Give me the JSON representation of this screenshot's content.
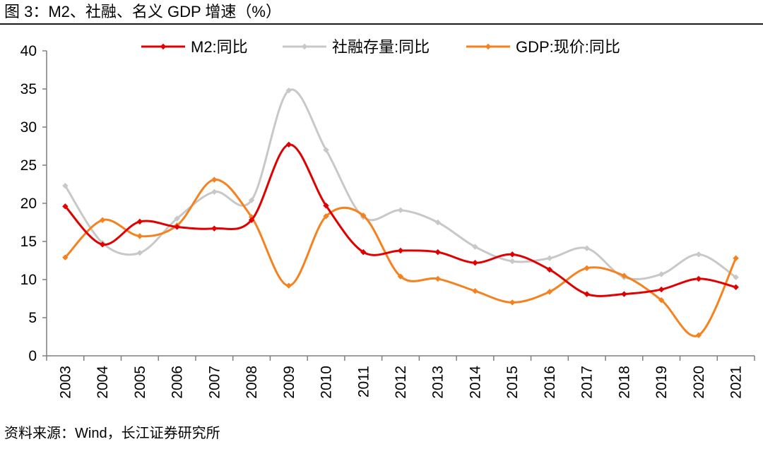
{
  "figure": {
    "title": "图 3：M2、社融、名义 GDP 增速（%）",
    "source": "资料来源：Wind，长江证券研究所"
  },
  "chart_data": {
    "type": "line",
    "title": "图 3：M2、社融、名义 GDP 增速（%）",
    "xlabel": "",
    "ylabel": "",
    "ylim": [
      0,
      40
    ],
    "yticks": [
      "0",
      "5",
      "10",
      "15",
      "20",
      "25",
      "30",
      "35",
      "40"
    ],
    "categories": [
      "2003",
      "2004",
      "2005",
      "2006",
      "2007",
      "2008",
      "2009",
      "2010",
      "2011",
      "2012",
      "2013",
      "2014",
      "2015",
      "2016",
      "2017",
      "2018",
      "2019",
      "2020",
      "2021"
    ],
    "legend_position": "top",
    "grid": false,
    "series": [
      {
        "name": "M2:同比",
        "color": "#e00000",
        "values": [
          19.6,
          14.6,
          17.6,
          16.9,
          16.7,
          17.8,
          27.7,
          19.7,
          13.6,
          13.8,
          13.6,
          12.2,
          13.3,
          11.3,
          8.1,
          8.1,
          8.7,
          10.1,
          9.0
        ]
      },
      {
        "name": "社融存量:同比",
        "color": "#c8c8c8",
        "values": [
          22.3,
          14.8,
          13.5,
          18.0,
          21.5,
          20.4,
          34.8,
          27.0,
          18.2,
          19.1,
          17.5,
          14.3,
          12.4,
          12.8,
          14.1,
          10.3,
          10.7,
          13.3,
          10.3
        ]
      },
      {
        "name": "GDP:现价:同比",
        "color": "#f5821f",
        "values": [
          12.9,
          17.8,
          15.7,
          17.1,
          23.1,
          18.2,
          9.2,
          18.3,
          18.4,
          10.4,
          10.1,
          8.5,
          7.0,
          8.4,
          11.5,
          10.5,
          7.3,
          2.7,
          12.8
        ]
      }
    ]
  }
}
